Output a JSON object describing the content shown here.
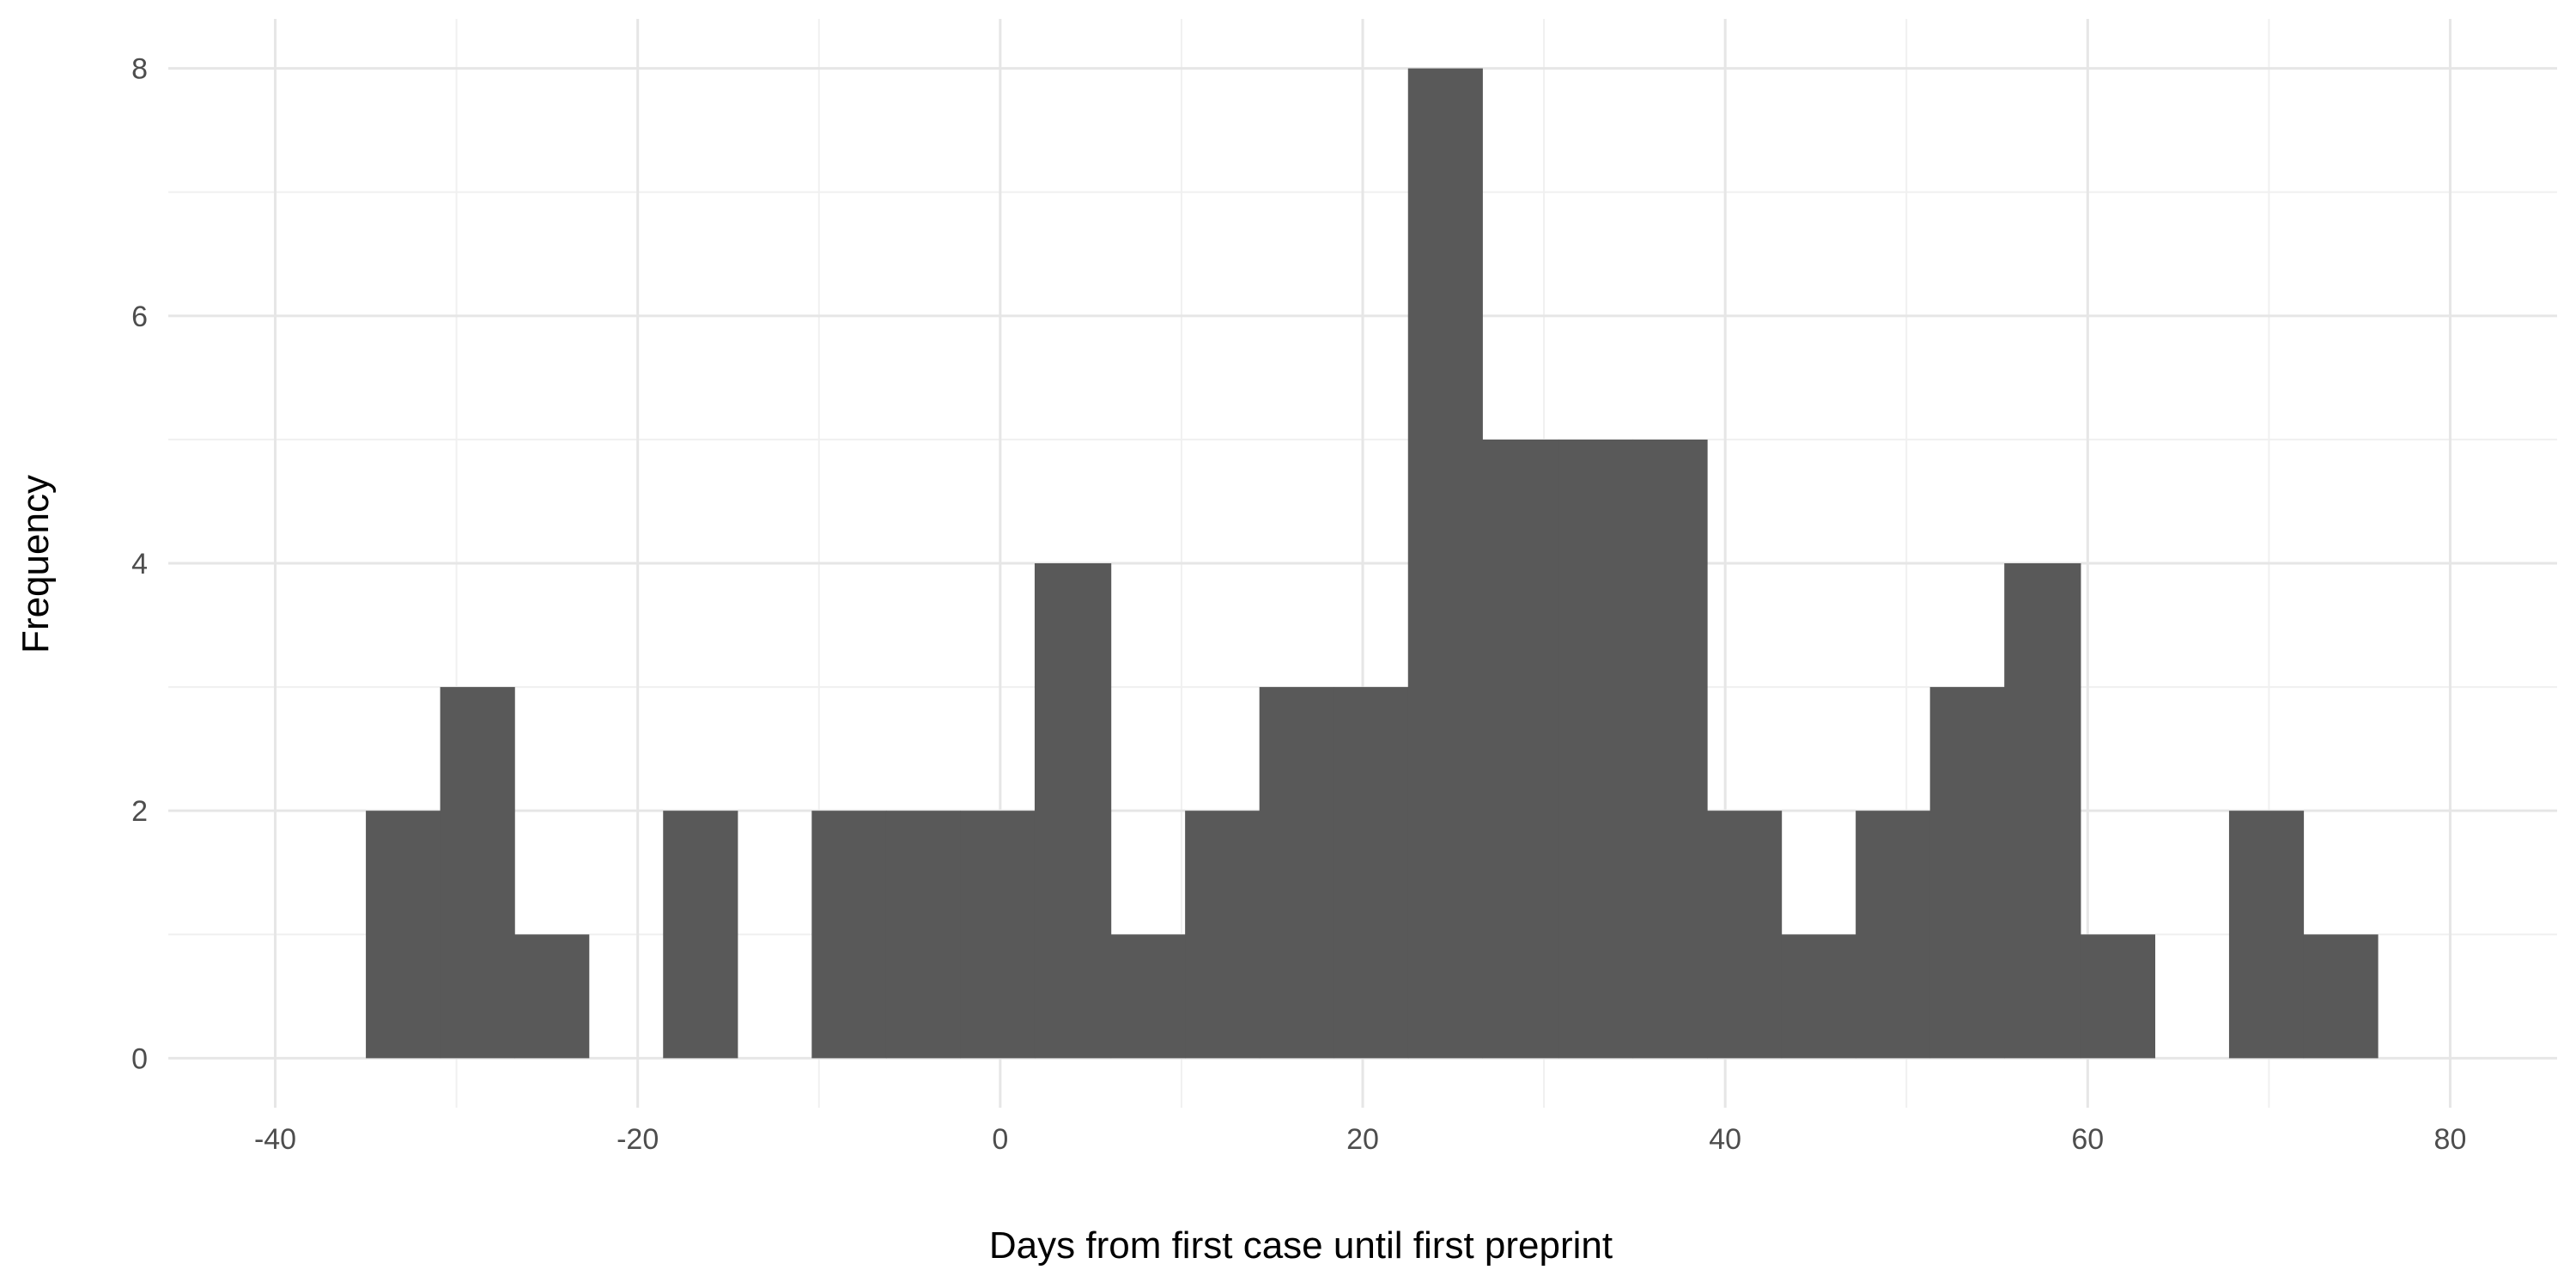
{
  "chart_data": {
    "type": "bar",
    "title": "",
    "xlabel": "Days from first case until first preprint",
    "ylabel": "Frequency",
    "xlim": [
      -45.9,
      85.9
    ],
    "ylim": [
      -0.4,
      8.4
    ],
    "x_ticks": [
      -40,
      -20,
      0,
      20,
      40,
      60,
      80
    ],
    "y_ticks": [
      0,
      2,
      4,
      6,
      8
    ],
    "grid": true,
    "legend": "none",
    "bar_color": "#595959",
    "bins": [
      {
        "x0": -35.0,
        "x1": -30.9,
        "count": 2
      },
      {
        "x0": -30.9,
        "x1": -26.8,
        "count": 3
      },
      {
        "x0": -26.8,
        "x1": -22.7,
        "count": 1
      },
      {
        "x0": -22.7,
        "x1": -18.6,
        "count": 0
      },
      {
        "x0": -18.6,
        "x1": -14.5,
        "count": 2
      },
      {
        "x0": -14.5,
        "x1": -10.4,
        "count": 0
      },
      {
        "x0": -10.4,
        "x1": -6.3,
        "count": 2
      },
      {
        "x0": -6.3,
        "x1": -2.2,
        "count": 2
      },
      {
        "x0": -2.2,
        "x1": 1.9,
        "count": 2
      },
      {
        "x0": 1.9,
        "x1": 6.1,
        "count": 4
      },
      {
        "x0": 6.1,
        "x1": 10.2,
        "count": 1
      },
      {
        "x0": 10.2,
        "x1": 14.3,
        "count": 2
      },
      {
        "x0": 14.3,
        "x1": 18.4,
        "count": 3
      },
      {
        "x0": 18.4,
        "x1": 22.5,
        "count": 3
      },
      {
        "x0": 22.5,
        "x1": 26.6,
        "count": 8
      },
      {
        "x0": 26.6,
        "x1": 30.8,
        "count": 5
      },
      {
        "x0": 30.8,
        "x1": 34.9,
        "count": 5
      },
      {
        "x0": 34.9,
        "x1": 39.0,
        "count": 5
      },
      {
        "x0": 39.0,
        "x1": 43.1,
        "count": 2
      },
      {
        "x0": 43.1,
        "x1": 47.2,
        "count": 1
      },
      {
        "x0": 47.2,
        "x1": 51.3,
        "count": 2
      },
      {
        "x0": 51.3,
        "x1": 55.4,
        "count": 3
      },
      {
        "x0": 55.4,
        "x1": 59.6,
        "count": 4
      },
      {
        "x0": 59.6,
        "x1": 63.7,
        "count": 1
      },
      {
        "x0": 63.7,
        "x1": 67.8,
        "count": 0
      },
      {
        "x0": 67.8,
        "x1": 71.9,
        "count": 2
      },
      {
        "x0": 71.9,
        "x1": 76.0,
        "count": 1
      }
    ]
  }
}
